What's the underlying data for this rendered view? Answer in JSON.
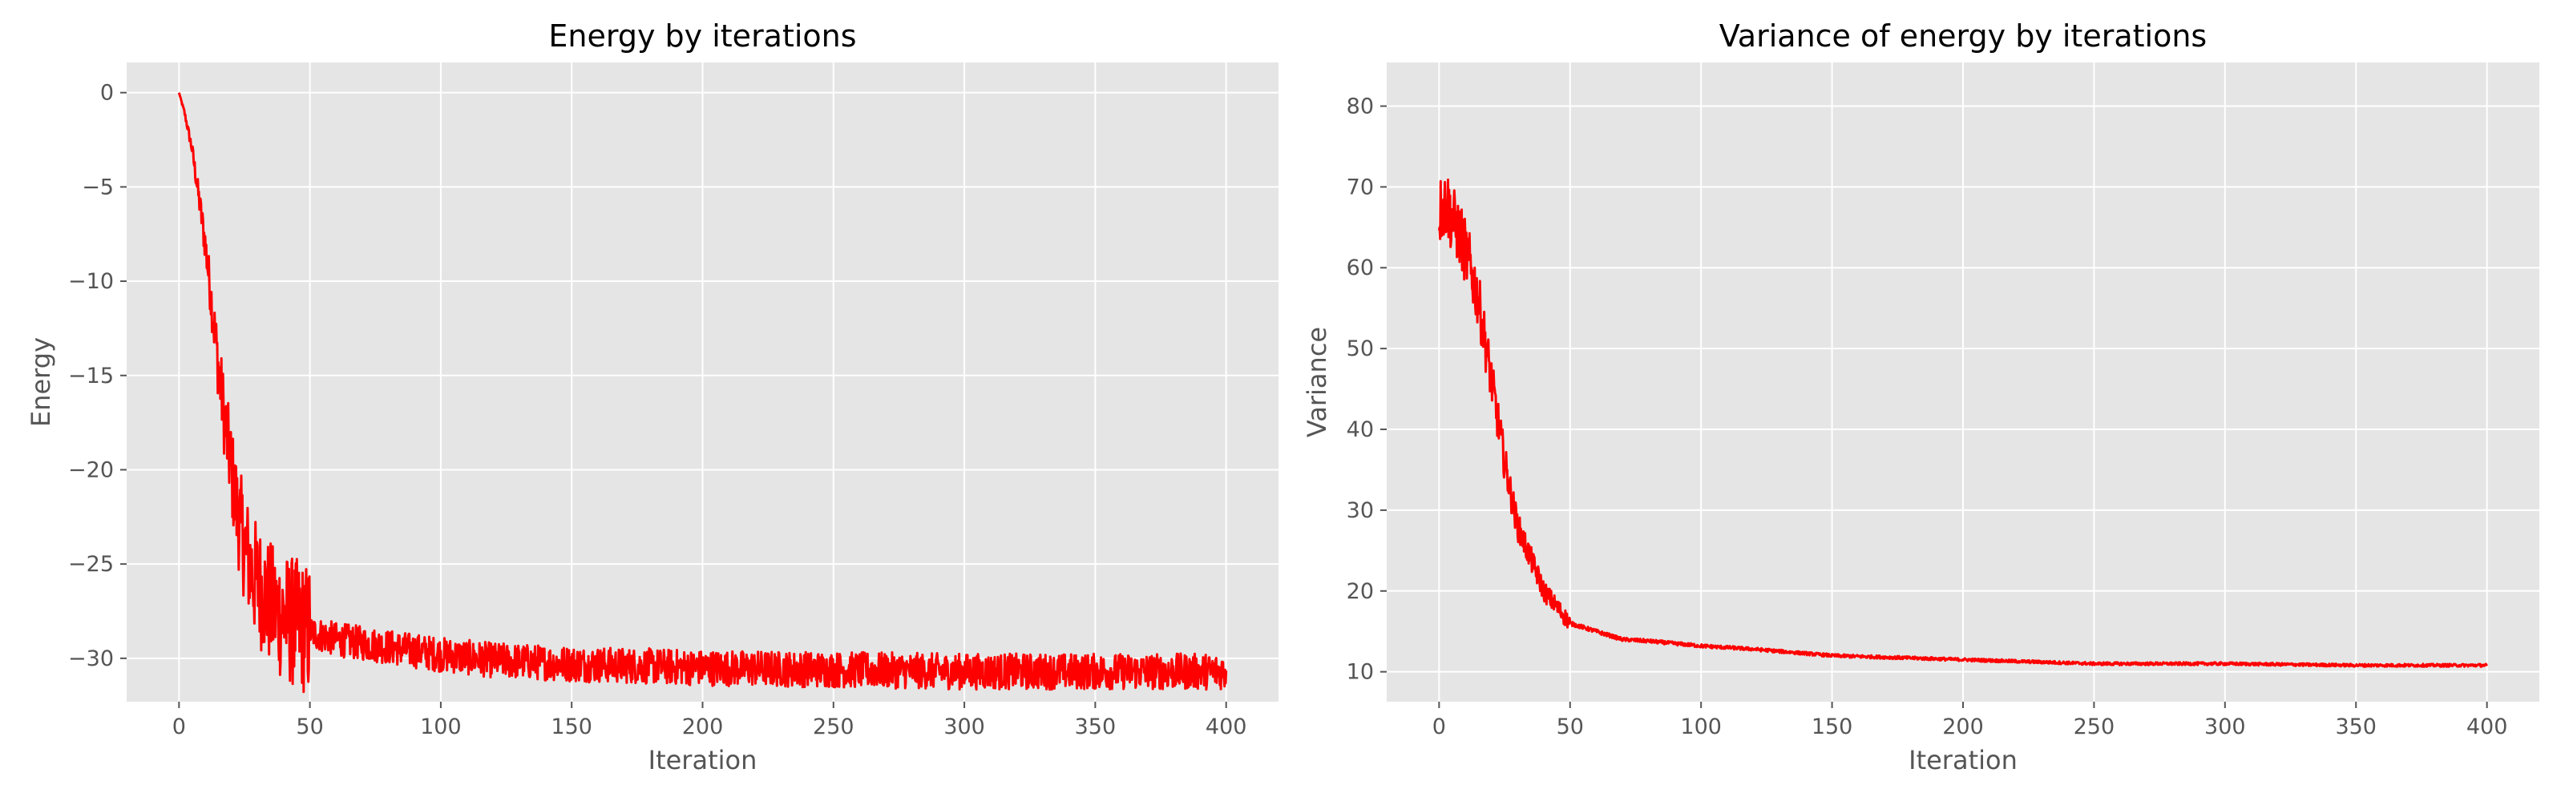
{
  "chart_data": [
    {
      "type": "line",
      "title": "Energy by iterations",
      "xlabel": "Iteration",
      "ylabel": "Energy",
      "xlim": [
        -20,
        420
      ],
      "ylim": [
        -32.3,
        1.6
      ],
      "xticks": [
        0,
        50,
        100,
        150,
        200,
        250,
        300,
        350,
        400
      ],
      "xtick_labels": [
        "0",
        "50",
        "100",
        "150",
        "200",
        "250",
        "300",
        "350",
        "400"
      ],
      "yticks": [
        0,
        -5,
        -10,
        -15,
        -20,
        -25,
        -30
      ],
      "ytick_labels": [
        "0",
        "−5",
        "−10",
        "−15",
        "−20",
        "−25",
        "−30"
      ],
      "grid": true,
      "style": "ggplot",
      "series": [
        {
          "color": "#ff0000",
          "noise": 0.25,
          "x": [
            0,
            2,
            5,
            8,
            10,
            12,
            15,
            18,
            20,
            22,
            25,
            28,
            30,
            35,
            40,
            45,
            50,
            60,
            70,
            80,
            90,
            100,
            120,
            150,
            200,
            250,
            300,
            350,
            400
          ],
          "y": [
            0,
            -1,
            -3,
            -6,
            -8,
            -10.5,
            -14.5,
            -18,
            -20,
            -22,
            -24,
            -25.5,
            -26,
            -27.2,
            -27.8,
            -28.2,
            -28.6,
            -29,
            -29.2,
            -29.4,
            -29.6,
            -29.8,
            -30.1,
            -30.3,
            -30.5,
            -30.6,
            -30.7,
            -30.7,
            -30.7
          ]
        }
      ]
    },
    {
      "type": "line",
      "title": "Variance of energy by iterations",
      "xlabel": "Iteration",
      "ylabel": "Variance",
      "xlim": [
        -20,
        420
      ],
      "ylim": [
        6.3,
        85.4
      ],
      "xticks": [
        0,
        50,
        100,
        150,
        200,
        250,
        300,
        350,
        400
      ],
      "xtick_labels": [
        "0",
        "50",
        "100",
        "150",
        "200",
        "250",
        "300",
        "350",
        "400"
      ],
      "yticks": [
        10,
        20,
        30,
        40,
        50,
        60,
        70,
        80
      ],
      "ytick_labels": [
        "10",
        "20",
        "30",
        "40",
        "50",
        "60",
        "70",
        "80"
      ],
      "grid": true,
      "style": "ggplot",
      "series": [
        {
          "color": "#ff0000",
          "noise": 0.13,
          "x": [
            0,
            3,
            5,
            8,
            10,
            12,
            15,
            18,
            20,
            22,
            25,
            28,
            30,
            35,
            40,
            45,
            50,
            60,
            70,
            80,
            90,
            100,
            120,
            150,
            200,
            250,
            300,
            350,
            400
          ],
          "y": [
            67,
            68,
            66,
            64,
            62,
            60,
            56,
            50,
            46,
            42,
            36,
            31,
            28,
            24,
            20,
            18,
            16,
            15,
            14,
            13.8,
            13.5,
            13.2,
            12.8,
            12,
            11.5,
            11,
            11,
            10.8,
            10.8
          ]
        }
      ]
    }
  ]
}
